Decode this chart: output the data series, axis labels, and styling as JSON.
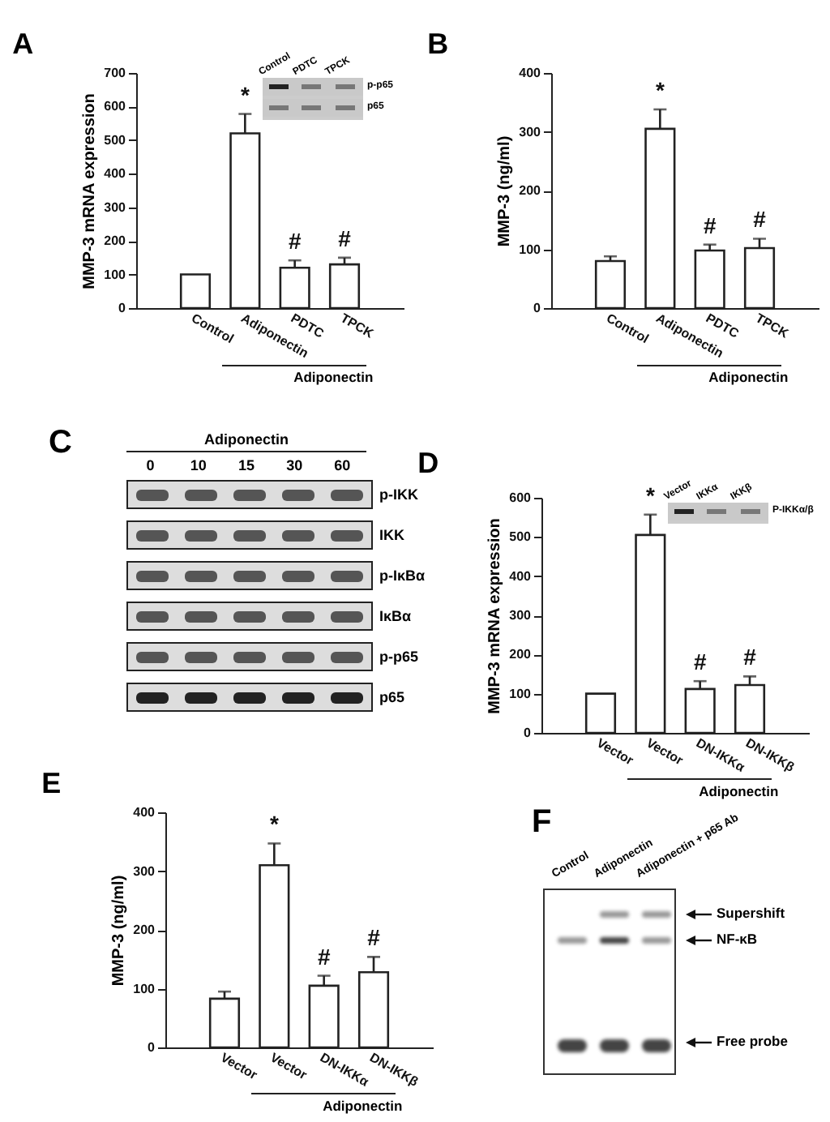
{
  "chart_data": [
    {
      "type": "bar",
      "title": "A",
      "ylabel": "MMP-3 mRNA expression",
      "xlabel": "Adiponectin",
      "categories": [
        "Control",
        "Adiponectin",
        "PDTC",
        "TPCK"
      ],
      "values": [
        100,
        520,
        120,
        130
      ],
      "errors": [
        null,
        58,
        22,
        20
      ],
      "value_labels": [
        null,
        "*",
        "#",
        "#"
      ],
      "color": "#ffffff",
      "ylim": [
        0,
        700
      ],
      "yticks": [
        0,
        100,
        200,
        300,
        400,
        500,
        600,
        700
      ],
      "annotations": [
        "Control",
        "PDTC",
        "TPCK",
        "p-p65",
        "p65"
      ]
    },
    {
      "type": "bar",
      "title": "B",
      "ylabel": "MMP-3 (ng/ml)",
      "xlabel": "Adiponectin",
      "categories": [
        "Control",
        "Adiponectin",
        "PDTC",
        "TPCK"
      ],
      "values": [
        80,
        305,
        98,
        102
      ],
      "errors": [
        8,
        33,
        10,
        16
      ],
      "value_labels": [
        null,
        "*",
        "#",
        "#"
      ],
      "color": "#ffffff",
      "ylim": [
        0,
        400
      ],
      "yticks": [
        0,
        100,
        200,
        300,
        400
      ]
    },
    {
      "type": "other",
      "title": "C",
      "xlabel": "Adiponectin",
      "categories": [
        "0",
        "10",
        "15",
        "30",
        "60"
      ],
      "y_categories": [
        "p-IKK",
        "IKK",
        "p-IκBα",
        "IκBα",
        "p-p65",
        "p65"
      ]
    },
    {
      "type": "bar",
      "title": "D",
      "ylabel": "MMP-3 mRNA expression",
      "xlabel": "Adiponectin",
      "categories": [
        "Vector",
        "Vector",
        "DN-IKKα",
        "DN-IKKβ"
      ],
      "values": [
        100,
        505,
        112,
        122
      ],
      "errors": [
        null,
        52,
        20,
        22
      ],
      "value_labels": [
        null,
        "*",
        "#",
        "#"
      ],
      "color": "#ffffff",
      "ylim": [
        0,
        600
      ],
      "yticks": [
        0,
        100,
        200,
        300,
        400,
        500,
        600
      ],
      "annotations": [
        "Vector",
        "IKKα",
        "IKKβ",
        "P-IKKα/β"
      ]
    },
    {
      "type": "bar",
      "title": "E",
      "ylabel": "MMP-3 (ng/ml)",
      "xlabel": "Adiponectin",
      "categories": [
        "Vector",
        "Vector",
        "DN-IKKα",
        "DN-IKKβ"
      ],
      "values": [
        83,
        310,
        105,
        128
      ],
      "errors": [
        12,
        37,
        17,
        26
      ],
      "value_labels": [
        null,
        "*",
        "#",
        "#"
      ],
      "color": "#ffffff",
      "ylim": [
        0,
        400
      ],
      "yticks": [
        0,
        100,
        200,
        300,
        400
      ]
    },
    {
      "type": "other",
      "title": "F",
      "categories": [
        "Control",
        "Adiponectin",
        "Adiponectin + p65 Ab"
      ],
      "y_categories": [
        "Supershift",
        "NF-κB",
        "Free probe"
      ]
    }
  ]
}
